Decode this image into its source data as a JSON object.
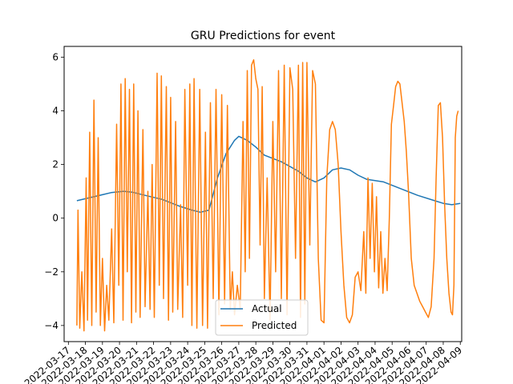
{
  "chart_data": {
    "type": "line",
    "title": "GRU Predictions for event",
    "xlabel": "",
    "ylabel": "",
    "x_ticks": [
      "2022-03-17",
      "2022-03-18",
      "2022-03-19",
      "2022-03-20",
      "2022-03-21",
      "2022-03-22",
      "2022-03-23",
      "2022-03-24",
      "2022-03-25",
      "2022-03-26",
      "2022-03-27",
      "2022-03-28",
      "2022-03-29",
      "2022-03-30",
      "2022-03-31",
      "2022-04-01",
      "2022-04-02",
      "2022-04-03",
      "2022-04-04",
      "2022-04-05",
      "2022-04-06",
      "2022-04-07",
      "2022-04-08",
      "2022-04-09"
    ],
    "y_ticks": [
      -4,
      -2,
      0,
      2,
      4,
      6
    ],
    "xlim": [
      "2022-03-16T18:00",
      "2022-04-09T02:00"
    ],
    "ylim": [
      -4.6,
      6.4
    ],
    "grid": false,
    "legend_position": "bottom-center",
    "series": [
      {
        "name": "Actual",
        "color": "#1f77b4",
        "points": [
          [
            "2022-03-17T12:00",
            0.65
          ],
          [
            "2022-03-18T12:00",
            0.8
          ],
          [
            "2022-03-19T12:00",
            0.95
          ],
          [
            "2022-03-20T06:00",
            1.0
          ],
          [
            "2022-03-20T18:00",
            0.97
          ],
          [
            "2022-03-21T12:00",
            0.85
          ],
          [
            "2022-03-22T12:00",
            0.7
          ],
          [
            "2022-03-23T12:00",
            0.45
          ],
          [
            "2022-03-24T06:00",
            0.3
          ],
          [
            "2022-03-24T18:00",
            0.22
          ],
          [
            "2022-03-25T06:00",
            0.3
          ],
          [
            "2022-03-25T18:00",
            1.5
          ],
          [
            "2022-03-26T06:00",
            2.4
          ],
          [
            "2022-03-26T18:00",
            2.9
          ],
          [
            "2022-03-27T00:00",
            3.05
          ],
          [
            "2022-03-27T12:00",
            2.9
          ],
          [
            "2022-03-28T00:00",
            2.65
          ],
          [
            "2022-03-28T12:00",
            2.35
          ],
          [
            "2022-03-29T12:00",
            2.1
          ],
          [
            "2022-03-30T12:00",
            1.75
          ],
          [
            "2022-03-31T00:00",
            1.5
          ],
          [
            "2022-03-31T12:00",
            1.35
          ],
          [
            "2022-04-01T00:00",
            1.5
          ],
          [
            "2022-04-01T12:00",
            1.8
          ],
          [
            "2022-04-02T00:00",
            1.87
          ],
          [
            "2022-04-02T12:00",
            1.8
          ],
          [
            "2022-04-03T00:00",
            1.6
          ],
          [
            "2022-04-03T12:00",
            1.45
          ],
          [
            "2022-04-04T12:00",
            1.35
          ],
          [
            "2022-04-05T12:00",
            1.1
          ],
          [
            "2022-04-06T12:00",
            0.85
          ],
          [
            "2022-04-07T12:00",
            0.65
          ],
          [
            "2022-04-08T00:00",
            0.55
          ],
          [
            "2022-04-08T12:00",
            0.5
          ],
          [
            "2022-04-09T00:00",
            0.55
          ]
        ]
      },
      {
        "name": "Predicted",
        "color": "#ff7f0e",
        "points": [
          [
            "2022-03-17T12:00",
            -4.0
          ],
          [
            "2022-03-17T13:30",
            0.3
          ],
          [
            "2022-03-17T16:00",
            -4.1
          ],
          [
            "2022-03-17T19:00",
            -2.0
          ],
          [
            "2022-03-17T22:00",
            -4.2
          ],
          [
            "2022-03-18T01:00",
            1.5
          ],
          [
            "2022-03-18T03:00",
            -3.8
          ],
          [
            "2022-03-18T06:00",
            3.2
          ],
          [
            "2022-03-18T09:00",
            -4.0
          ],
          [
            "2022-03-18T12:00",
            4.4
          ],
          [
            "2022-03-18T15:00",
            -3.5
          ],
          [
            "2022-03-18T18:00",
            3.0
          ],
          [
            "2022-03-18T21:00",
            -4.0
          ],
          [
            "2022-03-19T00:00",
            -1.5
          ],
          [
            "2022-03-19T03:00",
            -4.2
          ],
          [
            "2022-03-19T06:00",
            -2.5
          ],
          [
            "2022-03-19T09:00",
            -3.8
          ],
          [
            "2022-03-19T13:00",
            -0.4
          ],
          [
            "2022-03-19T16:00",
            -3.9
          ],
          [
            "2022-03-19T20:00",
            3.5
          ],
          [
            "2022-03-19T23:00",
            -2.5
          ],
          [
            "2022-03-20T02:00",
            5.0
          ],
          [
            "2022-03-20T05:00",
            -3.8
          ],
          [
            "2022-03-20T08:00",
            5.2
          ],
          [
            "2022-03-20T11:00",
            -2.0
          ],
          [
            "2022-03-20T14:00",
            4.8
          ],
          [
            "2022-03-20T17:00",
            -3.9
          ],
          [
            "2022-03-20T20:00",
            5.0
          ],
          [
            "2022-03-20T23:00",
            -3.5
          ],
          [
            "2022-03-21T02:00",
            4.0
          ],
          [
            "2022-03-21T05:00",
            -3.7
          ],
          [
            "2022-03-21T09:00",
            3.3
          ],
          [
            "2022-03-21T12:00",
            -3.3
          ],
          [
            "2022-03-21T16:00",
            1.0
          ],
          [
            "2022-03-21T19:00",
            -3.4
          ],
          [
            "2022-03-21T22:00",
            2.0
          ],
          [
            "2022-03-22T01:00",
            -3.7
          ],
          [
            "2022-03-22T05:00",
            5.4
          ],
          [
            "2022-03-22T08:00",
            -2.5
          ],
          [
            "2022-03-22T11:00",
            5.3
          ],
          [
            "2022-03-22T14:00",
            -3.0
          ],
          [
            "2022-03-22T18:00",
            4.9
          ],
          [
            "2022-03-22T21:00",
            -3.8
          ],
          [
            "2022-03-23T00:00",
            4.5
          ],
          [
            "2022-03-23T03:00",
            -3.5
          ],
          [
            "2022-03-23T07:00",
            3.6
          ],
          [
            "2022-03-23T10:00",
            -3.4
          ],
          [
            "2022-03-23T14:00",
            0.5
          ],
          [
            "2022-03-23T17:00",
            -3.7
          ],
          [
            "2022-03-23T20:00",
            4.8
          ],
          [
            "2022-03-24T00:00",
            -2.5
          ],
          [
            "2022-03-24T03:00",
            5.0
          ],
          [
            "2022-03-24T06:00",
            -4.0
          ],
          [
            "2022-03-24T09:00",
            5.2
          ],
          [
            "2022-03-24T13:00",
            -4.1
          ],
          [
            "2022-03-24T17:00",
            4.8
          ],
          [
            "2022-03-24T21:00",
            -4.0
          ],
          [
            "2022-03-25T01:00",
            3.2
          ],
          [
            "2022-03-25T04:00",
            -4.1
          ],
          [
            "2022-03-25T08:00",
            4.3
          ],
          [
            "2022-03-25T12:00",
            -3.0
          ],
          [
            "2022-03-25T16:00",
            4.8
          ],
          [
            "2022-03-25T20:00",
            -3.6
          ],
          [
            "2022-03-26T00:00",
            4.6
          ],
          [
            "2022-03-26T04:00",
            -3.2
          ],
          [
            "2022-03-26T08:00",
            4.2
          ],
          [
            "2022-03-26T12:00",
            -3.4
          ],
          [
            "2022-03-26T15:00",
            -2.0
          ],
          [
            "2022-03-26T18:00",
            -3.6
          ],
          [
            "2022-03-26T22:00",
            -2.5
          ],
          [
            "2022-03-27T02:00",
            -3.4
          ],
          [
            "2022-03-27T06:00",
            3.6
          ],
          [
            "2022-03-27T09:00",
            -2.0
          ],
          [
            "2022-03-27T12:00",
            5.5
          ],
          [
            "2022-03-27T15:00",
            -1.5
          ],
          [
            "2022-03-27T18:00",
            5.7
          ],
          [
            "2022-03-27T21:00",
            5.9
          ],
          [
            "2022-03-28T00:00",
            5.2
          ],
          [
            "2022-03-28T03:00",
            4.8
          ],
          [
            "2022-03-28T06:00",
            -1.0
          ],
          [
            "2022-03-28T09:00",
            4.9
          ],
          [
            "2022-03-28T12:00",
            -3.0
          ],
          [
            "2022-03-28T16:00",
            1.5
          ],
          [
            "2022-03-28T20:00",
            -3.8
          ],
          [
            "2022-03-29T00:00",
            3.6
          ],
          [
            "2022-03-29T04:00",
            -2.0
          ],
          [
            "2022-03-29T08:00",
            5.5
          ],
          [
            "2022-03-29T12:00",
            -3.0
          ],
          [
            "2022-03-29T16:00",
            5.7
          ],
          [
            "2022-03-29T20:00",
            -3.6
          ],
          [
            "2022-03-30T00:00",
            5.6
          ],
          [
            "2022-03-30T04:00",
            4.8
          ],
          [
            "2022-03-30T08:00",
            -1.5
          ],
          [
            "2022-03-30T12:00",
            5.7
          ],
          [
            "2022-03-30T15:00",
            -3.7
          ],
          [
            "2022-03-30T18:00",
            5.8
          ],
          [
            "2022-03-30T21:00",
            -3.2
          ],
          [
            "2022-03-31T00:00",
            5.8
          ],
          [
            "2022-03-31T04:00",
            -1.0
          ],
          [
            "2022-03-31T08:00",
            5.5
          ],
          [
            "2022-03-31T12:00",
            5.0
          ],
          [
            "2022-03-31T16:00",
            -1.5
          ],
          [
            "2022-03-31T20:00",
            -3.8
          ],
          [
            "2022-04-01T00:00",
            -3.9
          ],
          [
            "2022-04-01T04:00",
            1.5
          ],
          [
            "2022-04-01T08:00",
            3.3
          ],
          [
            "2022-04-01T12:00",
            3.6
          ],
          [
            "2022-04-01T16:00",
            3.3
          ],
          [
            "2022-04-01T20:00",
            2.0
          ],
          [
            "2022-04-02T00:00",
            -0.5
          ],
          [
            "2022-04-02T04:00",
            -2.5
          ],
          [
            "2022-04-02T08:00",
            -3.7
          ],
          [
            "2022-04-02T12:00",
            -3.9
          ],
          [
            "2022-04-02T16:00",
            -3.6
          ],
          [
            "2022-04-02T20:00",
            -2.2
          ],
          [
            "2022-04-03T00:00",
            -2.0
          ],
          [
            "2022-04-03T04:00",
            -2.7
          ],
          [
            "2022-04-03T08:00",
            -0.5
          ],
          [
            "2022-04-03T11:00",
            -2.8
          ],
          [
            "2022-04-03T14:00",
            1.5
          ],
          [
            "2022-04-03T17:00",
            -1.5
          ],
          [
            "2022-04-03T20:00",
            1.3
          ],
          [
            "2022-04-03T23:00",
            -2.0
          ],
          [
            "2022-04-04T02:00",
            0.8
          ],
          [
            "2022-04-04T05:00",
            -2.6
          ],
          [
            "2022-04-04T08:00",
            -0.5
          ],
          [
            "2022-04-04T11:00",
            -2.8
          ],
          [
            "2022-04-04T14:00",
            -1.5
          ],
          [
            "2022-04-04T17:00",
            -2.7
          ],
          [
            "2022-04-04T20:00",
            0.0
          ],
          [
            "2022-04-04T23:00",
            3.5
          ],
          [
            "2022-04-05T02:00",
            4.2
          ],
          [
            "2022-04-05T05:00",
            4.9
          ],
          [
            "2022-04-05T08:00",
            5.1
          ],
          [
            "2022-04-05T11:00",
            5.0
          ],
          [
            "2022-04-05T14:00",
            4.3
          ],
          [
            "2022-04-05T17:00",
            3.6
          ],
          [
            "2022-04-05T20:00",
            2.5
          ],
          [
            "2022-04-05T23:00",
            1.0
          ],
          [
            "2022-04-06T03:00",
            -1.5
          ],
          [
            "2022-04-06T07:00",
            -2.5
          ],
          [
            "2022-04-06T11:00",
            -2.8
          ],
          [
            "2022-04-06T15:00",
            -3.1
          ],
          [
            "2022-04-06T19:00",
            -3.3
          ],
          [
            "2022-04-06T23:00",
            -3.5
          ],
          [
            "2022-04-07T03:00",
            -3.7
          ],
          [
            "2022-04-07T07:00",
            -3.3
          ],
          [
            "2022-04-07T11:00",
            -1.5
          ],
          [
            "2022-04-07T14:00",
            1.5
          ],
          [
            "2022-04-07T17:00",
            4.2
          ],
          [
            "2022-04-07T20:00",
            4.3
          ],
          [
            "2022-04-07T23:00",
            3.0
          ],
          [
            "2022-04-08T02:00",
            0.5
          ],
          [
            "2022-04-08T05:00",
            -1.5
          ],
          [
            "2022-04-08T08:00",
            -2.8
          ],
          [
            "2022-04-08T11:00",
            -3.5
          ],
          [
            "2022-04-08T13:00",
            -3.6
          ],
          [
            "2022-04-08T15:00",
            -2.5
          ],
          [
            "2022-04-08T17:00",
            3.0
          ],
          [
            "2022-04-08T19:00",
            3.8
          ],
          [
            "2022-04-08T21:00",
            4.0
          ]
        ]
      }
    ]
  }
}
